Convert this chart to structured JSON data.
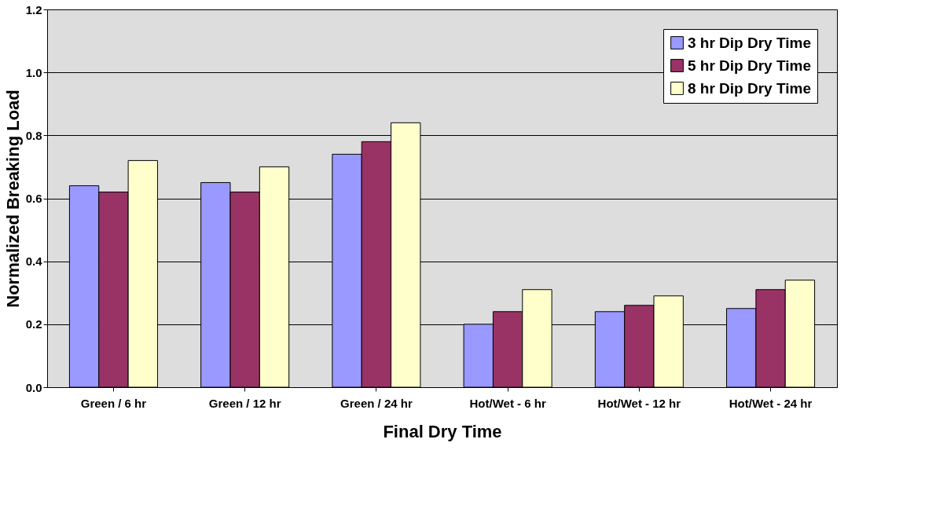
{
  "chart_data": {
    "type": "bar",
    "xlabel": "Final Dry Time",
    "ylabel": "Normalized Breaking Load",
    "categories": [
      "Green / 6 hr",
      "Green / 12 hr",
      "Green / 24 hr",
      "Hot/Wet - 6 hr",
      "Hot/Wet - 12 hr",
      "Hot/Wet - 24 hr"
    ],
    "series": [
      {
        "name": "3 hr Dip Dry Time",
        "color": "#9999ff",
        "values": [
          0.64,
          0.65,
          0.74,
          0.2,
          0.24,
          0.25
        ]
      },
      {
        "name": "5 hr Dip Dry Time",
        "color": "#993366",
        "values": [
          0.62,
          0.62,
          0.78,
          0.24,
          0.26,
          0.31
        ]
      },
      {
        "name": "8 hr Dip Dry Time",
        "color": "#ffffcc",
        "values": [
          0.72,
          0.7,
          0.84,
          0.31,
          0.29,
          0.34
        ]
      }
    ],
    "ylim": [
      0,
      1.2
    ],
    "yticks": [
      {
        "value": 0,
        "label": "0.0"
      },
      {
        "value": 0.2,
        "label": "0.2"
      },
      {
        "value": 0.4,
        "label": "0.4"
      },
      {
        "value": 0.6,
        "label": "0.6"
      },
      {
        "value": 0.8,
        "label": "0.8"
      },
      {
        "value": 1.0,
        "label": "1.0"
      },
      {
        "value": 1.2,
        "label": "1.2"
      }
    ],
    "grid": "y",
    "legend": "top right"
  }
}
